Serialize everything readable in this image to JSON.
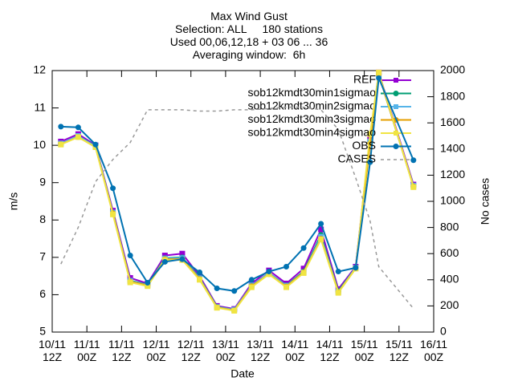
{
  "chart_data": {
    "type": "line",
    "title": "Max Wind Gust\nSelection: ALL     180 stations\nUsed 00,06,12,18 + 03 06 ... 36\nAveraging window:  6h",
    "xlabel": "Date",
    "ylabel": "m/s",
    "y2label": "No cases",
    "x": [
      3,
      9,
      15,
      21,
      27,
      33,
      39,
      45,
      51,
      57,
      63,
      69,
      75,
      81,
      87,
      93,
      99,
      105,
      110,
      113,
      125
    ],
    "xlim": [
      0,
      132
    ],
    "xticks": [
      {
        "value": 0,
        "label": "10/11\n12Z"
      },
      {
        "value": 12,
        "label": "11/11\n00Z"
      },
      {
        "value": 24,
        "label": "11/11\n12Z"
      },
      {
        "value": 36,
        "label": "12/11\n00Z"
      },
      {
        "value": 48,
        "label": "12/11\n12Z"
      },
      {
        "value": 60,
        "label": "13/11\n00Z"
      },
      {
        "value": 72,
        "label": "13/11\n12Z"
      },
      {
        "value": 84,
        "label": "14/11\n00Z"
      },
      {
        "value": 96,
        "label": "14/11\n12Z"
      },
      {
        "value": 108,
        "label": "15/11\n00Z"
      },
      {
        "value": 120,
        "label": "15/11\n12Z"
      },
      {
        "value": 132,
        "label": "16/11\n00Z"
      }
    ],
    "ylim": [
      5,
      12
    ],
    "yticks": [
      5,
      6,
      7,
      8,
      9,
      10,
      11,
      12
    ],
    "y2lim": [
      0,
      2000
    ],
    "y2ticks": [
      0,
      200,
      400,
      600,
      800,
      1000,
      1200,
      1400,
      1600,
      1800,
      2000
    ],
    "legend": "top-right",
    "series": [
      {
        "name": "REF",
        "color": "#9400d3",
        "values": [
          10.1,
          10.3,
          10.0,
          8.25,
          6.45,
          6.3,
          7.05,
          7.1,
          6.5,
          5.7,
          5.62,
          6.3,
          6.65,
          6.3,
          6.7,
          7.75,
          6.15,
          6.75,
          10.2,
          11.95,
          8.95
        ]
      },
      {
        "name": "sob12kmdt30min1sigmao",
        "color": "#009e73",
        "values": [
          10.05,
          10.25,
          9.98,
          8.2,
          6.38,
          6.27,
          6.98,
          7.0,
          6.45,
          5.68,
          5.6,
          6.25,
          6.58,
          6.25,
          6.62,
          7.6,
          6.1,
          6.72,
          10.1,
          11.9,
          8.9
        ]
      },
      {
        "name": "sob12kmdt30min2sigmao",
        "color": "#56b4e9",
        "values": [
          10.05,
          10.25,
          9.97,
          8.2,
          6.37,
          6.26,
          6.97,
          6.98,
          6.44,
          5.67,
          5.6,
          6.25,
          6.57,
          6.24,
          6.6,
          7.55,
          6.08,
          6.72,
          10.1,
          11.9,
          8.92
        ]
      },
      {
        "name": "sob12kmdt30min3sigmao",
        "color": "#e69f00",
        "values": [
          10.03,
          10.22,
          9.95,
          8.18,
          6.35,
          6.25,
          6.95,
          6.95,
          6.42,
          5.66,
          5.58,
          6.23,
          6.55,
          6.22,
          6.6,
          7.5,
          6.07,
          6.7,
          10.05,
          11.9,
          8.9
        ]
      },
      {
        "name": "sob12kmdt30min4sigmao",
        "color": "#f0e442",
        "values": [
          10.02,
          10.22,
          9.95,
          8.15,
          6.33,
          6.23,
          6.93,
          6.93,
          6.4,
          5.65,
          5.57,
          6.2,
          6.55,
          6.2,
          6.58,
          7.48,
          6.05,
          6.7,
          10.3,
          11.95,
          8.88
        ]
      },
      {
        "name": "OBS",
        "color": "#0072b2",
        "values": [
          10.5,
          10.48,
          10.02,
          8.85,
          7.05,
          6.32,
          6.88,
          6.95,
          6.6,
          6.17,
          6.1,
          6.4,
          6.62,
          6.75,
          7.25,
          7.9,
          6.62,
          6.72,
          9.55,
          11.8,
          9.6
        ]
      },
      {
        "name": "CASES",
        "color": "#999999",
        "axis": "y2",
        "dash": true,
        "values": [
          520,
          800,
          1150,
          1320,
          1450,
          1700,
          1700,
          1700,
          1690,
          1690,
          1700,
          1700,
          1710,
          1720,
          1720,
          1700,
          1550,
          1180,
          850,
          500,
          180
        ]
      }
    ]
  }
}
